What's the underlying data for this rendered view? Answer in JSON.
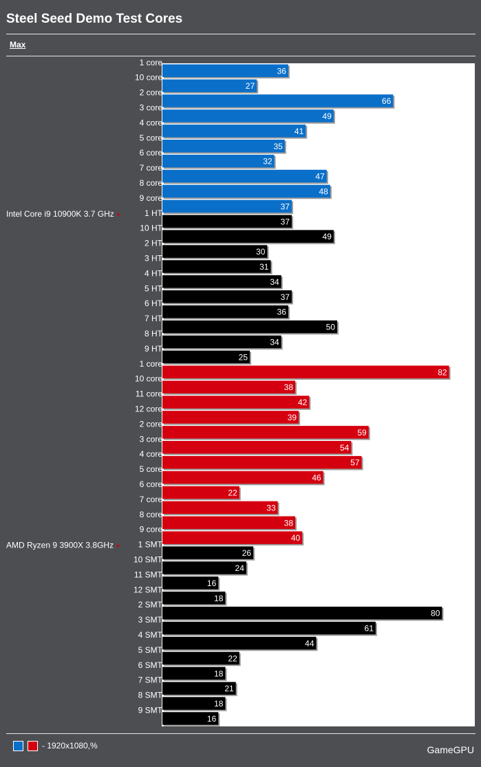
{
  "header": {
    "title": "Steel Seed Demo Test Cores",
    "tab": "Max"
  },
  "legend": {
    "text": "- 1920x1080,%",
    "colors": [
      "#0a6fc9",
      "#d4000f"
    ]
  },
  "brand": "GameGPU",
  "colors": {
    "intel": "#0a6fc9",
    "amd": "#d4000f",
    "ht": "#000000",
    "background": "#4d4e52",
    "plot": "#ffffff"
  },
  "chart_data": {
    "type": "bar",
    "orientation": "horizontal",
    "title": "Steel Seed Demo Test Cores",
    "xlim": [
      0,
      100
    ],
    "groups": [
      {
        "name": "Intel Core i9 10900K 3.7 GHz",
        "bars": [
          {
            "label": "1 core",
            "value": 36,
            "color": "#0a6fc9"
          },
          {
            "label": "10 core",
            "value": 27,
            "color": "#0a6fc9"
          },
          {
            "label": "2 core",
            "value": 66,
            "color": "#0a6fc9"
          },
          {
            "label": "3 core",
            "value": 49,
            "color": "#0a6fc9"
          },
          {
            "label": "4 core",
            "value": 41,
            "color": "#0a6fc9"
          },
          {
            "label": "5 core",
            "value": 35,
            "color": "#0a6fc9"
          },
          {
            "label": "6 core",
            "value": 32,
            "color": "#0a6fc9"
          },
          {
            "label": "7 core",
            "value": 47,
            "color": "#0a6fc9"
          },
          {
            "label": "8 core",
            "value": 48,
            "color": "#0a6fc9"
          },
          {
            "label": "9 core",
            "value": 37,
            "color": "#0a6fc9"
          },
          {
            "label": "1 HT",
            "value": 37,
            "color": "#000000"
          },
          {
            "label": "10 HT",
            "value": 49,
            "color": "#000000"
          },
          {
            "label": "2 HT",
            "value": 30,
            "color": "#000000"
          },
          {
            "label": "3 HT",
            "value": 31,
            "color": "#000000"
          },
          {
            "label": "4 HT",
            "value": 34,
            "color": "#000000"
          },
          {
            "label": "5 HT",
            "value": 37,
            "color": "#000000"
          },
          {
            "label": "6 HT",
            "value": 36,
            "color": "#000000"
          },
          {
            "label": "7 HT",
            "value": 50,
            "color": "#000000"
          },
          {
            "label": "8 HT",
            "value": 34,
            "color": "#000000"
          },
          {
            "label": "9 HT",
            "value": 25,
            "color": "#000000"
          }
        ]
      },
      {
        "name": "AMD Ryzen 9 3900X 3.8GHz",
        "bars": [
          {
            "label": "1 core",
            "value": 82,
            "color": "#d4000f"
          },
          {
            "label": "10 core",
            "value": 38,
            "color": "#d4000f"
          },
          {
            "label": "11 core",
            "value": 42,
            "color": "#d4000f"
          },
          {
            "label": "12 core",
            "value": 39,
            "color": "#d4000f"
          },
          {
            "label": "2 core",
            "value": 59,
            "color": "#d4000f"
          },
          {
            "label": "3 core",
            "value": 54,
            "color": "#d4000f"
          },
          {
            "label": "4 core",
            "value": 57,
            "color": "#d4000f"
          },
          {
            "label": "5 core",
            "value": 46,
            "color": "#d4000f"
          },
          {
            "label": "6 core",
            "value": 22,
            "color": "#d4000f"
          },
          {
            "label": "7 core",
            "value": 33,
            "color": "#d4000f"
          },
          {
            "label": "8 core",
            "value": 38,
            "color": "#d4000f"
          },
          {
            "label": "9 core",
            "value": 40,
            "color": "#d4000f"
          },
          {
            "label": "1 SMT",
            "value": 26,
            "color": "#000000"
          },
          {
            "label": "10 SMT",
            "value": 24,
            "color": "#000000"
          },
          {
            "label": "11 SMT",
            "value": 16,
            "color": "#000000"
          },
          {
            "label": "12 SMT",
            "value": 18,
            "color": "#000000"
          },
          {
            "label": "2 SMT",
            "value": 80,
            "color": "#000000"
          },
          {
            "label": "3 SMT",
            "value": 61,
            "color": "#000000"
          },
          {
            "label": "4 SMT",
            "value": 44,
            "color": "#000000"
          },
          {
            "label": "5 SMT",
            "value": 22,
            "color": "#000000"
          },
          {
            "label": "6 SMT",
            "value": 18,
            "color": "#000000"
          },
          {
            "label": "7 SMT",
            "value": 21,
            "color": "#000000"
          },
          {
            "label": "8 SMT",
            "value": 18,
            "color": "#000000"
          },
          {
            "label": "9 SMT",
            "value": 16,
            "color": "#000000"
          }
        ]
      }
    ]
  }
}
